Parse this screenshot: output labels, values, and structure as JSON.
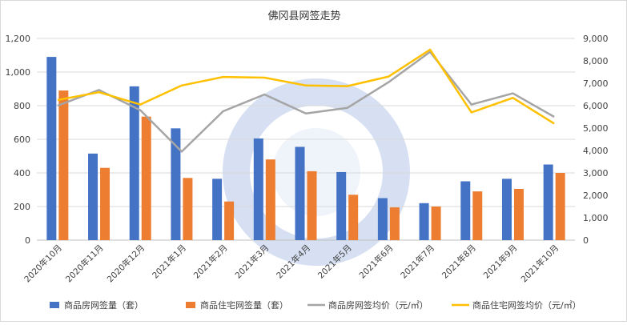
{
  "chart_data": {
    "type": "bar",
    "title": "佛冈县网签走势",
    "categories": [
      "2020年10月",
      "2020年11月",
      "2020年12月",
      "2021年1月",
      "2021年2月",
      "2021年3月",
      "2021年4月",
      "2021年5月",
      "2021年6月",
      "2021年7月",
      "2021年8月",
      "2021年9月",
      "2021年10月"
    ],
    "ylim_left": [
      0,
      1200
    ],
    "ylim_right": [
      0,
      9000
    ],
    "yticks_left": [
      "0",
      "200",
      "400",
      "600",
      "800",
      "1,000",
      "1,200"
    ],
    "yticks_right": [
      "0",
      "1,000",
      "2,000",
      "3,000",
      "4,000",
      "5,000",
      "6,000",
      "7,000",
      "8,000",
      "9,000"
    ],
    "grid": true,
    "legend_position": "bottom",
    "series": [
      {
        "name": "商品房网签量（套）",
        "type": "bar",
        "axis": "left",
        "color": "#4472C4",
        "values": [
          1090,
          515,
          915,
          665,
          365,
          605,
          555,
          405,
          250,
          220,
          350,
          365,
          450
        ]
      },
      {
        "name": "商品住宅网签量（套）",
        "type": "bar",
        "axis": "left",
        "color": "#ED7D31",
        "values": [
          890,
          430,
          735,
          370,
          230,
          480,
          410,
          270,
          195,
          200,
          290,
          305,
          400
        ]
      },
      {
        "name": "商品房网签均价（元/㎡）",
        "type": "line",
        "axis": "right",
        "color": "#A5A5A5",
        "values": [
          6000,
          6700,
          5800,
          3950,
          5750,
          6500,
          5650,
          5900,
          7050,
          8400,
          6050,
          6550,
          5500
        ]
      },
      {
        "name": "商品住宅网签均价（元/㎡）",
        "type": "line",
        "axis": "right",
        "color": "#FFC000",
        "values": [
          6250,
          6600,
          6050,
          6900,
          7280,
          7250,
          6900,
          6870,
          7300,
          8500,
          5700,
          6350,
          5200
        ]
      }
    ]
  }
}
